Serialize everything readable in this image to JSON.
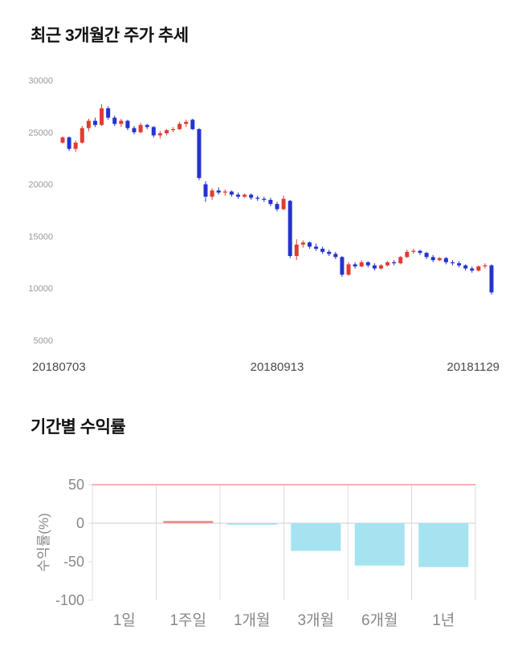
{
  "price_section": {
    "title": "최근 3개월간 주가 추세"
  },
  "returns_section": {
    "title": "기간별 수익률"
  },
  "chart_data": [
    {
      "type": "candlestick",
      "title": "최근 3개월간 주가 추세",
      "ylim": [
        5000,
        30000
      ],
      "yticks": [
        30000,
        25000,
        20000,
        15000,
        10000,
        5000
      ],
      "xtick_labels": [
        "20180703",
        "20180913",
        "20181129"
      ],
      "up_color": "#e03c31",
      "down_color": "#2433d0",
      "axis_text_color": "#999999",
      "xaxis_text_color": "#4a4a4a",
      "grid": false,
      "candles_ohlc": [
        [
          24000,
          24600,
          23900,
          24500
        ],
        [
          24500,
          24600,
          23200,
          23400
        ],
        [
          23400,
          24200,
          23100,
          24000
        ],
        [
          24000,
          25600,
          23900,
          25400
        ],
        [
          25400,
          26300,
          25100,
          26100
        ],
        [
          26100,
          26400,
          25500,
          25700
        ],
        [
          25700,
          27700,
          25600,
          27300
        ],
        [
          27300,
          27500,
          26200,
          26400
        ],
        [
          26400,
          26600,
          25600,
          25800
        ],
        [
          25800,
          26300,
          25500,
          26100
        ],
        [
          26100,
          26200,
          25200,
          25400
        ],
        [
          25400,
          25600,
          24800,
          25000
        ],
        [
          25000,
          25900,
          24900,
          25700
        ],
        [
          25700,
          25800,
          25300,
          25500
        ],
        [
          25500,
          25600,
          24500,
          24700
        ],
        [
          24700,
          25100,
          24400,
          24900
        ],
        [
          24900,
          25300,
          24700,
          25200
        ],
        [
          25200,
          25500,
          25000,
          25300
        ],
        [
          25300,
          26000,
          25200,
          25800
        ],
        [
          25800,
          26200,
          25500,
          26000
        ],
        [
          26200,
          26300,
          25200,
          25300
        ],
        [
          25300,
          25400,
          20400,
          20600
        ],
        [
          20000,
          20300,
          18300,
          18800
        ],
        [
          18800,
          19600,
          18500,
          19400
        ],
        [
          19400,
          19700,
          19000,
          19200
        ],
        [
          19200,
          19500,
          18900,
          19300
        ],
        [
          19300,
          19400,
          18800,
          19000
        ],
        [
          19000,
          19200,
          18600,
          18800
        ],
        [
          18800,
          19100,
          18700,
          19000
        ],
        [
          19000,
          19100,
          18500,
          18700
        ],
        [
          18700,
          18900,
          18400,
          18600
        ],
        [
          18600,
          18800,
          18300,
          18500
        ],
        [
          18500,
          18700,
          17900,
          18100
        ],
        [
          18100,
          18300,
          17400,
          17600
        ],
        [
          17600,
          18900,
          17500,
          18600
        ],
        [
          18400,
          18500,
          12900,
          13100
        ],
        [
          13100,
          14700,
          12700,
          14200
        ],
        [
          14200,
          14600,
          13900,
          14400
        ],
        [
          14400,
          14500,
          13800,
          14000
        ],
        [
          14000,
          14300,
          13600,
          13800
        ],
        [
          13800,
          14000,
          13300,
          13500
        ],
        [
          13500,
          13700,
          13100,
          13300
        ],
        [
          13300,
          13500,
          12800,
          13000
        ],
        [
          13000,
          13100,
          11100,
          11300
        ],
        [
          11300,
          12500,
          11200,
          12300
        ],
        [
          12300,
          12500,
          11900,
          12100
        ],
        [
          12100,
          12700,
          12000,
          12500
        ],
        [
          12500,
          12600,
          12000,
          12200
        ],
        [
          12200,
          12400,
          11700,
          11900
        ],
        [
          11900,
          12300,
          11800,
          12200
        ],
        [
          12200,
          12600,
          12100,
          12500
        ],
        [
          12500,
          12700,
          12200,
          12400
        ],
        [
          12400,
          13100,
          12300,
          13000
        ],
        [
          13000,
          13700,
          12900,
          13500
        ],
        [
          13500,
          13800,
          13300,
          13600
        ],
        [
          13600,
          13700,
          13200,
          13400
        ],
        [
          13400,
          13500,
          12800,
          13000
        ],
        [
          13000,
          13200,
          12500,
          12700
        ],
        [
          12700,
          13000,
          12600,
          12900
        ],
        [
          12900,
          13000,
          12300,
          12500
        ],
        [
          12500,
          12700,
          12200,
          12400
        ],
        [
          12400,
          12600,
          12000,
          12200
        ],
        [
          12200,
          12300,
          11700,
          11900
        ],
        [
          11900,
          12100,
          11500,
          11700
        ],
        [
          11700,
          12200,
          11600,
          12100
        ],
        [
          12100,
          12400,
          11900,
          12200
        ],
        [
          12200,
          12300,
          9400,
          9600
        ]
      ]
    },
    {
      "type": "bar",
      "title": "기간별 수익률",
      "categories": [
        "1일",
        "1주일",
        "1개월",
        "3개월",
        "6개월",
        "1년"
      ],
      "values": [
        0,
        3,
        -2,
        -36,
        -55,
        -57
      ],
      "ylabel": "수익률(%)",
      "ylim": [
        -100,
        50
      ],
      "yticks": [
        50,
        0,
        -50,
        -100
      ],
      "positive_color": "#f08e8e",
      "negative_color": "#a5e3f0",
      "grid_color": "#dcdcdc",
      "zero_line_color": "#cfcfcf",
      "top_line_color": "#f09a9e",
      "axis_text_color": "#888888",
      "legend": "none"
    }
  ]
}
